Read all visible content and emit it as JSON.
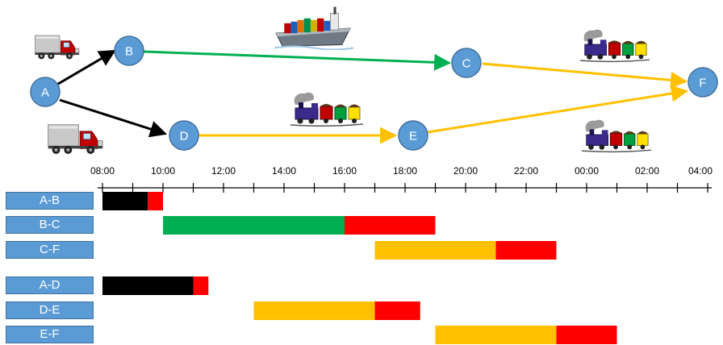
{
  "network": {
    "nodes": [
      {
        "id": "A",
        "label": "A"
      },
      {
        "id": "B",
        "label": "B"
      },
      {
        "id": "C",
        "label": "C"
      },
      {
        "id": "D",
        "label": "D"
      },
      {
        "id": "E",
        "label": "E"
      },
      {
        "id": "F",
        "label": "F"
      }
    ],
    "edges": [
      {
        "from": "A",
        "to": "B",
        "mode": "truck",
        "color": "#000000"
      },
      {
        "from": "A",
        "to": "D",
        "mode": "truck",
        "color": "#000000"
      },
      {
        "from": "B",
        "to": "C",
        "mode": "ship",
        "color": "#00b050"
      },
      {
        "from": "C",
        "to": "F",
        "mode": "train",
        "color": "#ffc000"
      },
      {
        "from": "D",
        "to": "E",
        "mode": "train",
        "color": "#ffc000"
      },
      {
        "from": "E",
        "to": "F",
        "mode": "train",
        "color": "#ffc000"
      }
    ],
    "node_color": "#5b9bd5",
    "icons": [
      "truck-icon",
      "ship-icon",
      "train-icon"
    ]
  },
  "timeline": {
    "ticks": [
      "08:00",
      "10:00",
      "12:00",
      "14:00",
      "16:00",
      "18:00",
      "20:00",
      "22:00",
      "00:00",
      "02:00",
      "04:00"
    ]
  },
  "chart_data": {
    "type": "gantt",
    "x_unit": "hours",
    "x_range": [
      "08:00",
      "04:00"
    ],
    "colors": {
      "truck": "#000000",
      "ship": "#00b050",
      "train": "#ffc000",
      "delay": "#ff0000"
    },
    "rows": [
      {
        "label": "A-B",
        "segments": [
          {
            "start": "08:00",
            "end": "09:30",
            "kind": "truck"
          },
          {
            "start": "09:30",
            "end": "10:00",
            "kind": "delay"
          }
        ]
      },
      {
        "label": "B-C",
        "segments": [
          {
            "start": "10:00",
            "end": "16:00",
            "kind": "ship"
          },
          {
            "start": "16:00",
            "end": "19:00",
            "kind": "delay"
          }
        ]
      },
      {
        "label": "C-F",
        "segments": [
          {
            "start": "17:00",
            "end": "21:00",
            "kind": "train"
          },
          {
            "start": "21:00",
            "end": "23:00",
            "kind": "delay"
          }
        ]
      },
      {
        "label": "A-D",
        "segments": [
          {
            "start": "08:00",
            "end": "11:00",
            "kind": "truck"
          },
          {
            "start": "11:00",
            "end": "11:30",
            "kind": "delay"
          }
        ]
      },
      {
        "label": "D-E",
        "segments": [
          {
            "start": "13:00",
            "end": "17:00",
            "kind": "train"
          },
          {
            "start": "17:00",
            "end": "18:30",
            "kind": "delay"
          }
        ]
      },
      {
        "label": "E-F",
        "segments": [
          {
            "start": "19:00",
            "end": "23:00",
            "kind": "train"
          },
          {
            "start": "23:00",
            "end": "01:00",
            "kind": "delay"
          }
        ]
      }
    ]
  }
}
